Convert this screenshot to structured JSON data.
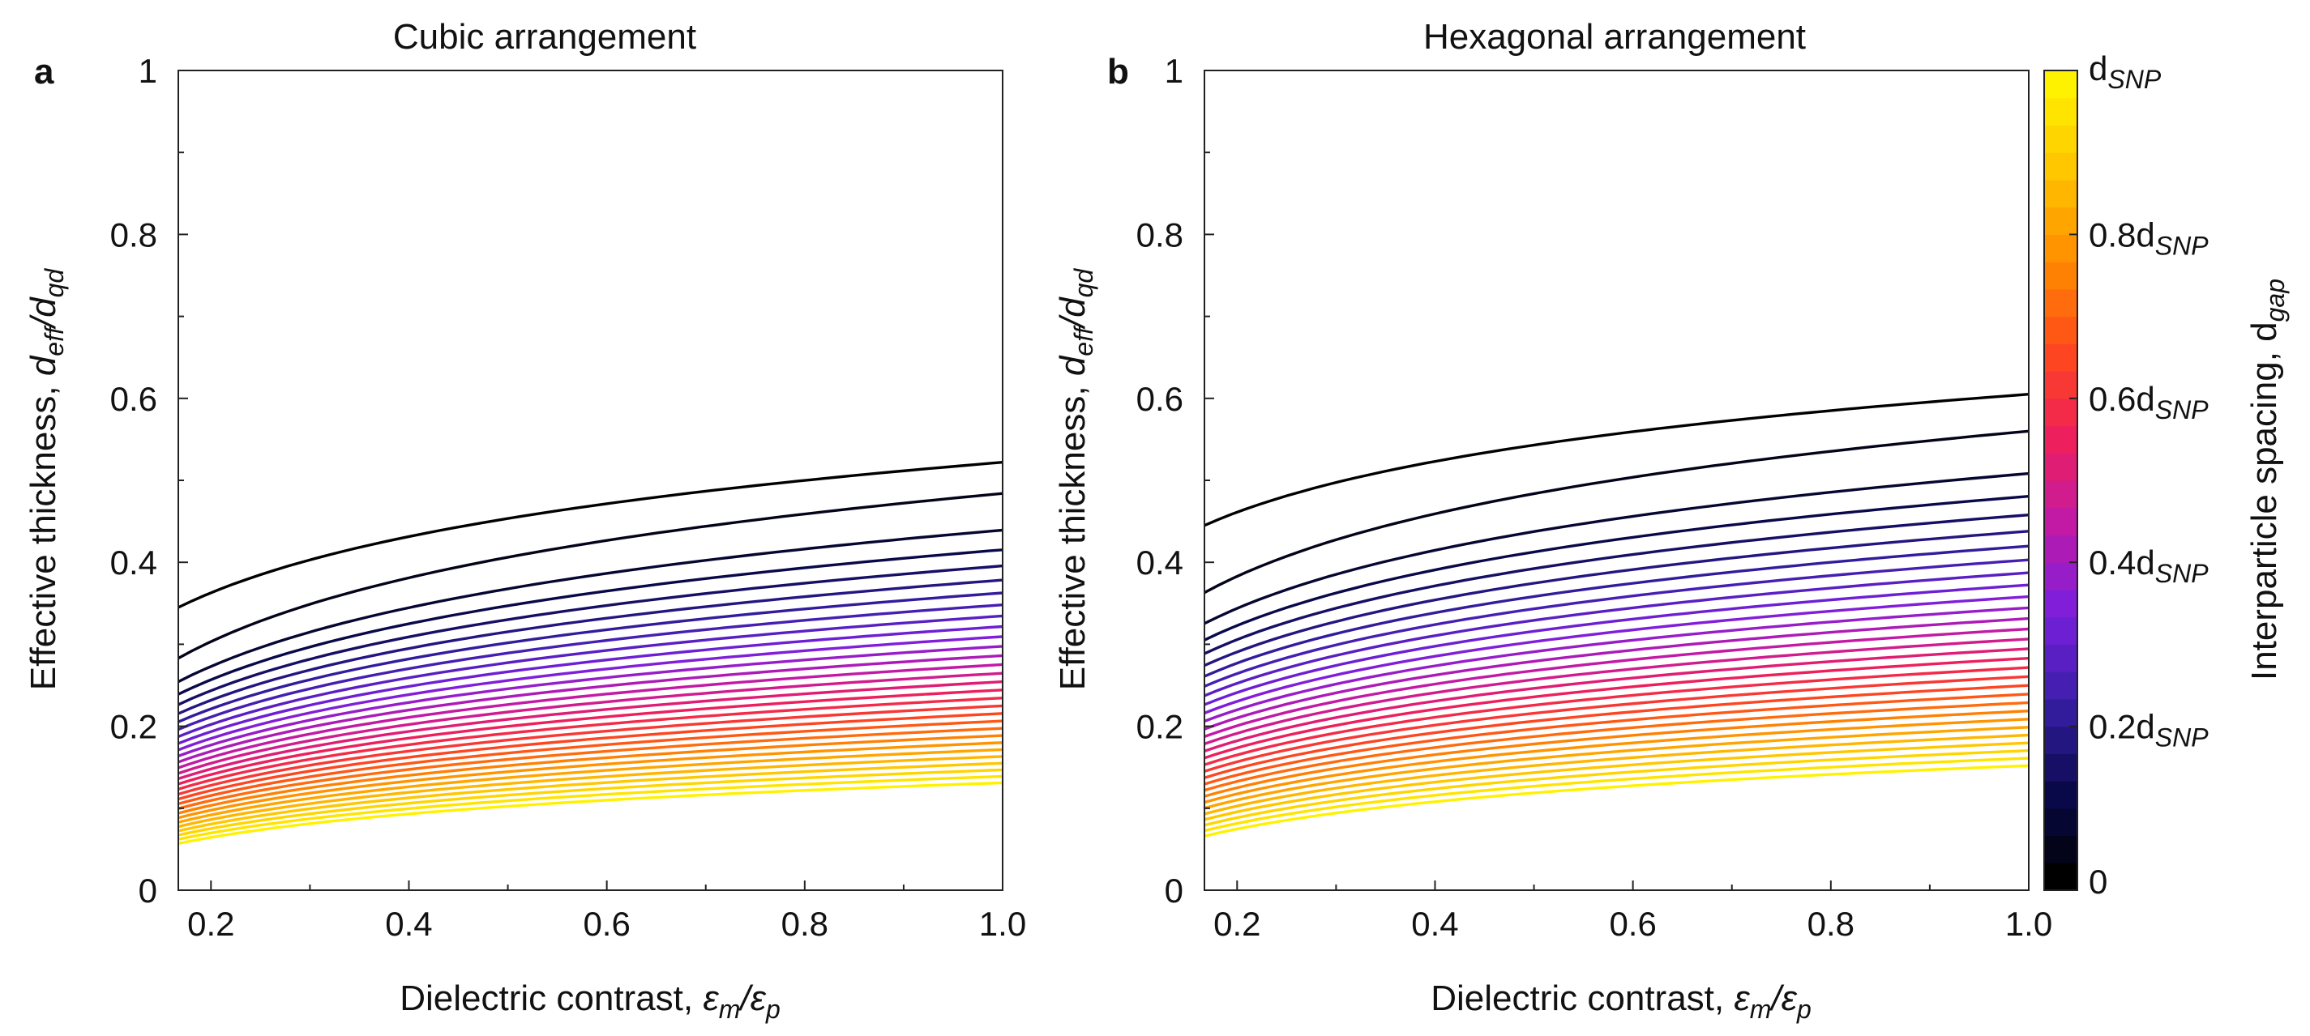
{
  "chart_data": [
    {
      "type": "line",
      "panel": "a",
      "title": "Cubic arrangement",
      "xlabel": {
        "prefix": "Dielectric contrast, ",
        "num": "ε",
        "num_sub": "m",
        "den": "ε",
        "den_sub": "p"
      },
      "ylabel": {
        "prefix": "Effective thickness, ",
        "num": "d",
        "num_sub": "eff",
        "den": "d",
        "den_sub": "qd"
      },
      "xlim": [
        0.167,
        1.0
      ],
      "ylim": [
        0,
        1
      ],
      "xticks": [
        "0.2",
        "0.4",
        "0.6",
        "0.8",
        "1.0"
      ],
      "yticks": [
        "0",
        "0.2",
        "0.4",
        "0.6",
        "0.8",
        "1"
      ],
      "n_series": 30,
      "series_note": "one curve per interparticle spacing d_gap from 0 (black, top) to d_SNP (yellow, bottom)",
      "curve_start": {
        "x": 0.167,
        "top": 0.345,
        "second": 0.283,
        "bottom": 0.057
      },
      "curve_end": {
        "x": 1.0,
        "top": 0.522,
        "second": 0.484,
        "bottom": 0.131
      }
    },
    {
      "type": "line",
      "panel": "b",
      "title": "Hexagonal arrangement",
      "xlabel": {
        "prefix": "Dielectric contrast, ",
        "num": "ε",
        "num_sub": "m",
        "den": "ε",
        "den_sub": "p"
      },
      "ylabel": {
        "prefix": "Effective thickness, ",
        "num": "d",
        "num_sub": "eff",
        "den": "d",
        "den_sub": "qd"
      },
      "xlim": [
        0.167,
        1.0
      ],
      "ylim": [
        0,
        1
      ],
      "xticks": [
        "0.2",
        "0.4",
        "0.6",
        "0.8",
        "1.0"
      ],
      "yticks": [
        "0",
        "0.2",
        "0.4",
        "0.6",
        "0.8",
        "1"
      ],
      "n_series": 30,
      "series_note": "one curve per interparticle spacing d_gap from 0 (black, top) to d_SNP (yellow, bottom)",
      "curve_start": {
        "x": 0.167,
        "top": 0.445,
        "second": 0.363,
        "bottom": 0.066
      },
      "curve_end": {
        "x": 1.0,
        "top": 0.605,
        "second": 0.56,
        "bottom": 0.152
      }
    }
  ],
  "colorbar": {
    "label": {
      "text": "Interparticle spacing, d",
      "sub": "gap"
    },
    "ticks": [
      {
        "value": 0,
        "text": "0",
        "sub": ""
      },
      {
        "value": 0.2,
        "text": "0.2d",
        "sub": "SNP"
      },
      {
        "value": 0.4,
        "text": "0.4d",
        "sub": "SNP"
      },
      {
        "value": 0.6,
        "text": "0.6d",
        "sub": "SNP"
      },
      {
        "value": 0.8,
        "text": "0.8d",
        "sub": "SNP"
      },
      {
        "value": 1.0,
        "text": "d",
        "sub": "SNP"
      }
    ],
    "n_colors": 30,
    "colormap_stops": [
      "#000000",
      "#0a0a50",
      "#3a1fa8",
      "#7a1fe0",
      "#c01aa8",
      "#ef1f5a",
      "#ff4a1a",
      "#ff8c00",
      "#ffc400",
      "#fff200"
    ]
  }
}
